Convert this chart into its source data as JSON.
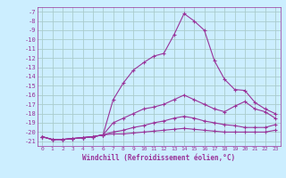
{
  "xlabel": "Windchill (Refroidissement éolien,°C)",
  "bg_color": "#cceeff",
  "grid_color": "#aacccc",
  "line_color": "#993399",
  "x_values": [
    0,
    1,
    2,
    3,
    4,
    5,
    6,
    7,
    8,
    9,
    10,
    11,
    12,
    13,
    14,
    15,
    16,
    17,
    18,
    19,
    20,
    21,
    22,
    23
  ],
  "curve1_y": [
    -20.5,
    -20.8,
    -20.8,
    -20.7,
    -20.6,
    -20.5,
    -20.3,
    -16.5,
    -14.7,
    -13.3,
    -12.5,
    -11.8,
    -11.5,
    -9.5,
    -7.2,
    -8.0,
    -9.0,
    -12.3,
    -14.3,
    -15.4,
    -15.5,
    -16.8,
    -17.5,
    -18.0
  ],
  "curve2_y": [
    -20.5,
    -20.8,
    -20.8,
    -20.7,
    -20.6,
    -20.5,
    -20.3,
    -19.0,
    -18.5,
    -18.0,
    -17.5,
    -17.3,
    -17.0,
    -16.5,
    -16.0,
    -16.5,
    -17.0,
    -17.5,
    -17.8,
    -17.2,
    -16.7,
    -17.5,
    -17.8,
    -18.5
  ],
  "curve3_y": [
    -20.5,
    -20.8,
    -20.8,
    -20.7,
    -20.6,
    -20.5,
    -20.3,
    -20.0,
    -19.8,
    -19.5,
    -19.3,
    -19.0,
    -18.8,
    -18.5,
    -18.3,
    -18.5,
    -18.8,
    -19.0,
    -19.2,
    -19.3,
    -19.5,
    -19.5,
    -19.5,
    -19.2
  ],
  "curve4_y": [
    -20.5,
    -20.8,
    -20.8,
    -20.7,
    -20.6,
    -20.5,
    -20.3,
    -20.2,
    -20.2,
    -20.1,
    -20.0,
    -19.9,
    -19.8,
    -19.7,
    -19.6,
    -19.7,
    -19.8,
    -19.9,
    -20.0,
    -20.0,
    -20.0,
    -20.0,
    -20.0,
    -19.8
  ],
  "ylim": [
    -21.5,
    -6.5
  ],
  "xlim": [
    -0.5,
    23.5
  ],
  "yticks": [
    -7,
    -8,
    -9,
    -10,
    -11,
    -12,
    -13,
    -14,
    -15,
    -16,
    -17,
    -18,
    -19,
    -20,
    -21
  ],
  "xticks": [
    0,
    1,
    2,
    3,
    4,
    5,
    6,
    7,
    8,
    9,
    10,
    11,
    12,
    13,
    14,
    15,
    16,
    17,
    18,
    19,
    20,
    21,
    22,
    23
  ]
}
